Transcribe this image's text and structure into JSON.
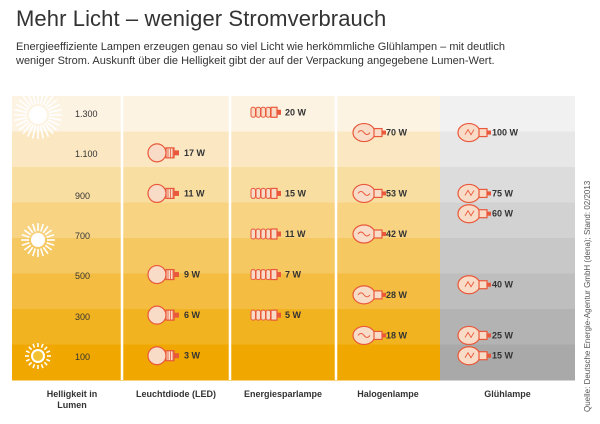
{
  "header": {
    "title": "Mehr Licht – weniger Stromverbrauch",
    "subtitle": "Energieeffiziente Lampen erzeugen genau so viel Licht wie herkömmliche Glühlampen – mit deutlich weniger Strom. Auskunft über die Helligkeit gibt der auf der Verpackung angegebene Lumen-Wert.",
    "source": "Quelle: Deutsche Energie-Agentur GmbH (dena); Stand: 02/2013"
  },
  "colors": {
    "band_light": "#fdf3e3",
    "band_dark": "#f0a800",
    "gray_light": "#f1f1f1",
    "gray_dark": "#a9a9a9",
    "bulb_fill": "#f8dcc8",
    "bulb_stroke": "#e9583a",
    "sun": "#f2c230"
  },
  "chart_data": {
    "type": "table",
    "row_header": "Helligkeit in Lumen",
    "lumen": [
      "1.300",
      "1.100",
      "900",
      "700",
      "500",
      "300",
      "100"
    ],
    "columns": [
      {
        "name": "Leuchtdiode (LED)",
        "lamp": "led",
        "values": [
          {
            "lumen": 1100,
            "watts": "17 W"
          },
          {
            "lumen": 900,
            "watts": "11 W"
          },
          {
            "lumen": 500,
            "watts": "9 W"
          },
          {
            "lumen": 300,
            "watts": "6 W"
          },
          {
            "lumen": 100,
            "watts": "3 W"
          }
        ]
      },
      {
        "name": "Energiesparlampe",
        "lamp": "cfl",
        "values": [
          {
            "lumen": 1300,
            "watts": "20 W"
          },
          {
            "lumen": 900,
            "watts": "15 W"
          },
          {
            "lumen": 700,
            "watts": "11 W"
          },
          {
            "lumen": 500,
            "watts": "7 W"
          },
          {
            "lumen": 300,
            "watts": "5 W"
          }
        ]
      },
      {
        "name": "Halogenlampe",
        "lamp": "halogen",
        "values": [
          {
            "lumen": 1200,
            "watts": "70 W"
          },
          {
            "lumen": 900,
            "watts": "53 W"
          },
          {
            "lumen": 700,
            "watts": "42 W"
          },
          {
            "lumen": 400,
            "watts": "28 W"
          },
          {
            "lumen": 200,
            "watts": "18 W"
          }
        ]
      },
      {
        "name": "Glühlampe",
        "lamp": "incandescent",
        "values": [
          {
            "lumen": 1200,
            "watts": "100 W"
          },
          {
            "lumen": 900,
            "watts": "75 W"
          },
          {
            "lumen": 800,
            "watts": "60 W"
          },
          {
            "lumen": 450,
            "watts": "40 W"
          },
          {
            "lumen": 200,
            "watts": "25 W"
          },
          {
            "lumen": 100,
            "watts": "15 W"
          }
        ]
      }
    ]
  }
}
